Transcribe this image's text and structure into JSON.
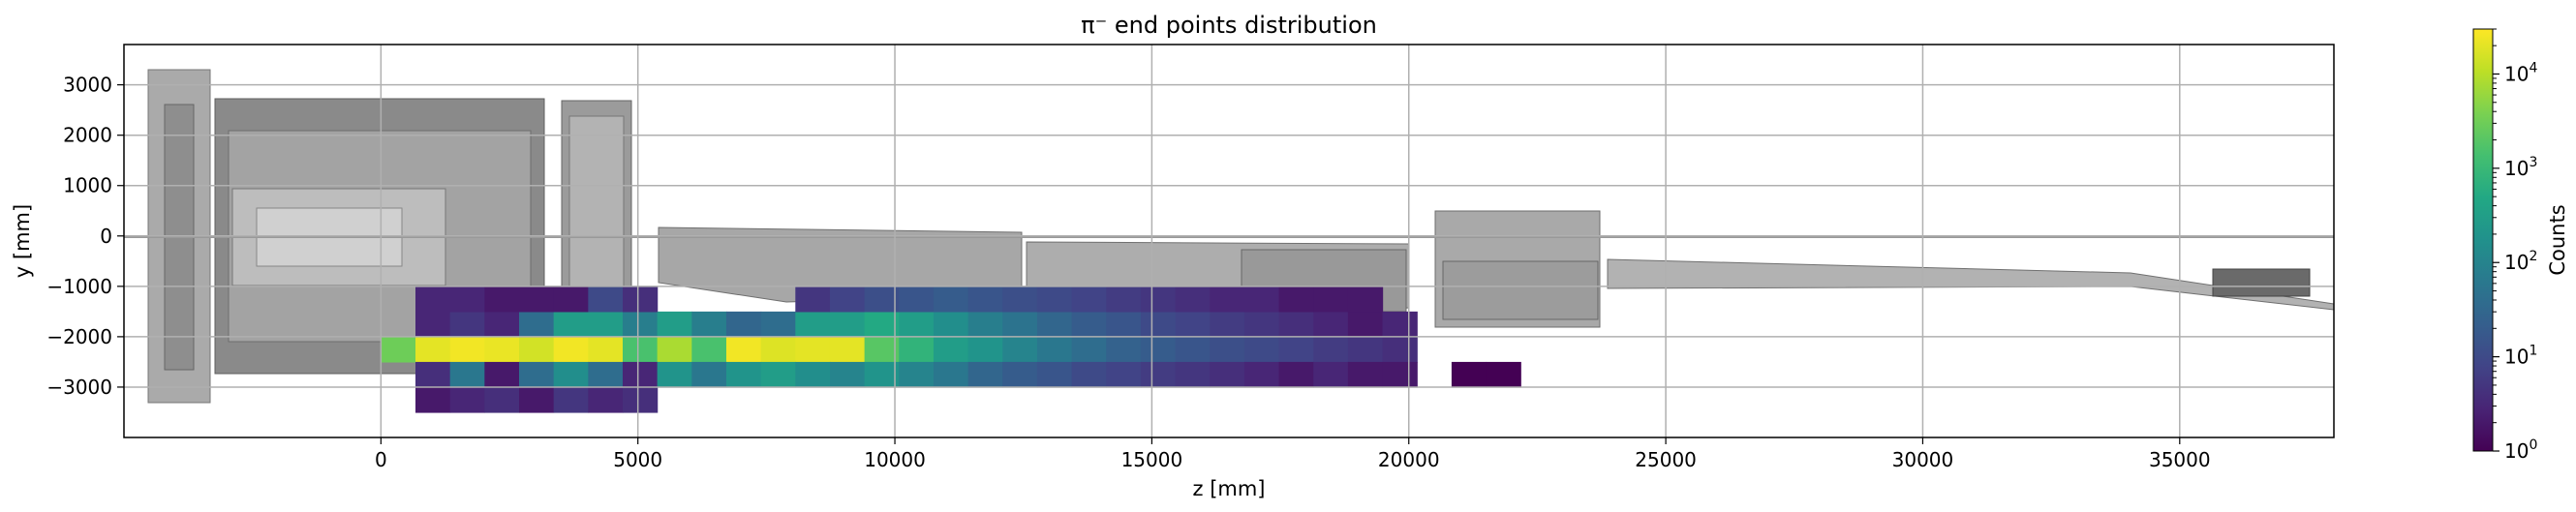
{
  "chart_data": {
    "type": "heatmap",
    "title": "π⁻ end points distribution",
    "xlabel": "z [mm]",
    "ylabel": "y [mm]",
    "xlim": [
      -5000,
      38000
    ],
    "ylim": [
      -4000,
      3800
    ],
    "xticks": [
      0,
      5000,
      10000,
      15000,
      20000,
      25000,
      30000,
      35000
    ],
    "yticks": [
      -3000,
      -2000,
      -1000,
      0,
      1000,
      2000,
      3000
    ],
    "xtick_labels": [
      "0",
      "5000",
      "10000",
      "15000",
      "20000",
      "25000",
      "30000",
      "35000"
    ],
    "ytick_labels": [
      "−3000",
      "−2000",
      "−1000",
      "0",
      "1000",
      "2000",
      "3000"
    ],
    "grid": true,
    "colorbar": {
      "label": "Counts",
      "scale": "log",
      "range": [
        1,
        30000
      ],
      "colormap": "viridis",
      "ticks": [
        1,
        10,
        100,
        1000,
        10000
      ],
      "tick_labels": [
        {
          "base": "10",
          "exp": "0"
        },
        {
          "base": "10",
          "exp": "1"
        },
        {
          "base": "10",
          "exp": "2"
        },
        {
          "base": "10",
          "exp": "3"
        },
        {
          "base": "10",
          "exp": "4"
        }
      ]
    },
    "bin_size": {
      "z": 672,
      "y": 500
    },
    "bin_origin": {
      "z": 0,
      "y": -2500
    },
    "bins": [
      [
        0,
        5,
        3000
      ],
      [
        1,
        5,
        20000
      ],
      [
        2,
        5,
        25000
      ],
      [
        3,
        5,
        22000
      ],
      [
        4,
        5,
        15000
      ],
      [
        5,
        5,
        25000
      ],
      [
        6,
        5,
        20000
      ],
      [
        7,
        5,
        1500
      ],
      [
        8,
        5,
        8000
      ],
      [
        9,
        5,
        1500
      ],
      [
        10,
        5,
        25000
      ],
      [
        11,
        5,
        18000
      ],
      [
        12,
        5,
        20000
      ],
      [
        13,
        5,
        20000
      ],
      [
        14,
        5,
        2000
      ],
      [
        15,
        5,
        800
      ],
      [
        16,
        5,
        300
      ],
      [
        17,
        5,
        200
      ],
      [
        18,
        5,
        100
      ],
      [
        19,
        5,
        60
      ],
      [
        20,
        5,
        40
      ],
      [
        21,
        5,
        25
      ],
      [
        22,
        5,
        20
      ],
      [
        23,
        5,
        15
      ],
      [
        24,
        5,
        12
      ],
      [
        25,
        5,
        10
      ],
      [
        26,
        5,
        8
      ],
      [
        27,
        5,
        6
      ],
      [
        28,
        5,
        5
      ],
      [
        29,
        5,
        4
      ],
      [
        1,
        6,
        3
      ],
      [
        2,
        6,
        5
      ],
      [
        3,
        6,
        3
      ],
      [
        4,
        6,
        40
      ],
      [
        5,
        6,
        300
      ],
      [
        6,
        6,
        300
      ],
      [
        7,
        6,
        80
      ],
      [
        8,
        6,
        300
      ],
      [
        9,
        6,
        80
      ],
      [
        10,
        6,
        30
      ],
      [
        11,
        6,
        40
      ],
      [
        12,
        6,
        300
      ],
      [
        13,
        6,
        300
      ],
      [
        14,
        6,
        500
      ],
      [
        15,
        6,
        300
      ],
      [
        16,
        6,
        150
      ],
      [
        17,
        6,
        80
      ],
      [
        18,
        6,
        50
      ],
      [
        19,
        6,
        30
      ],
      [
        20,
        6,
        20
      ],
      [
        21,
        6,
        15
      ],
      [
        22,
        6,
        10
      ],
      [
        23,
        6,
        8
      ],
      [
        24,
        6,
        6
      ],
      [
        25,
        6,
        5
      ],
      [
        26,
        6,
        4
      ],
      [
        27,
        6,
        3
      ],
      [
        28,
        6,
        2
      ],
      [
        29,
        6,
        3
      ],
      [
        1,
        4,
        4
      ],
      [
        2,
        4,
        60
      ],
      [
        3,
        4,
        2
      ],
      [
        4,
        4,
        40
      ],
      [
        5,
        4,
        150
      ],
      [
        6,
        4,
        40
      ],
      [
        7,
        4,
        3
      ],
      [
        8,
        4,
        200
      ],
      [
        9,
        4,
        60
      ],
      [
        10,
        4,
        200
      ],
      [
        11,
        4,
        300
      ],
      [
        12,
        4,
        150
      ],
      [
        13,
        4,
        100
      ],
      [
        14,
        4,
        200
      ],
      [
        15,
        4,
        100
      ],
      [
        16,
        4,
        60
      ],
      [
        17,
        4,
        30
      ],
      [
        18,
        4,
        20
      ],
      [
        19,
        4,
        15
      ],
      [
        20,
        4,
        10
      ],
      [
        21,
        4,
        8
      ],
      [
        22,
        4,
        6
      ],
      [
        23,
        4,
        5
      ],
      [
        24,
        4,
        4
      ],
      [
        25,
        4,
        3
      ],
      [
        26,
        4,
        2
      ],
      [
        27,
        4,
        3
      ],
      [
        28,
        4,
        2
      ],
      [
        29,
        4,
        2
      ],
      [
        31,
        4,
        1
      ],
      [
        32,
        4,
        1
      ],
      [
        1,
        7,
        3
      ],
      [
        2,
        7,
        3
      ],
      [
        3,
        7,
        2
      ],
      [
        4,
        7,
        2
      ],
      [
        5,
        7,
        2
      ],
      [
        6,
        7,
        10
      ],
      [
        7,
        7,
        4
      ],
      [
        12,
        7,
        5
      ],
      [
        13,
        7,
        8
      ],
      [
        14,
        7,
        12
      ],
      [
        15,
        7,
        15
      ],
      [
        16,
        7,
        20
      ],
      [
        17,
        7,
        15
      ],
      [
        18,
        7,
        12
      ],
      [
        19,
        7,
        10
      ],
      [
        20,
        7,
        8
      ],
      [
        21,
        7,
        6
      ],
      [
        22,
        7,
        5
      ],
      [
        23,
        7,
        4
      ],
      [
        24,
        7,
        3
      ],
      [
        25,
        7,
        3
      ],
      [
        26,
        7,
        2
      ],
      [
        27,
        7,
        2
      ],
      [
        28,
        7,
        2
      ],
      [
        1,
        3,
        2
      ],
      [
        2,
        3,
        3
      ],
      [
        3,
        3,
        4
      ],
      [
        4,
        3,
        2
      ],
      [
        5,
        3,
        5
      ],
      [
        6,
        3,
        3
      ],
      [
        7,
        3,
        4
      ]
    ]
  }
}
